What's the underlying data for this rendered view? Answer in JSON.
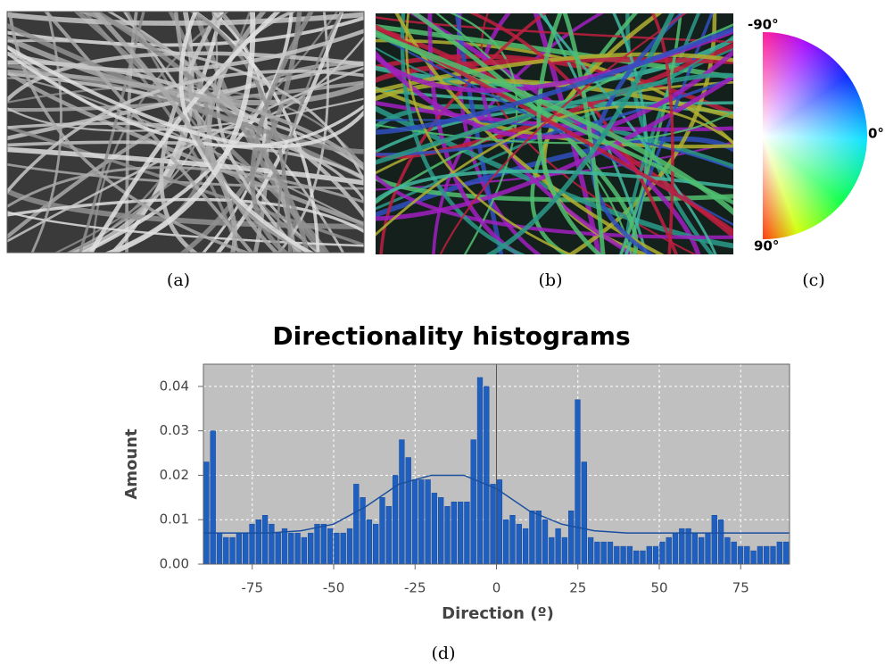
{
  "captions": {
    "a": "(a)",
    "b": "(b)",
    "c": "(c)",
    "d": "(d)"
  },
  "wheel_labels": {
    "top": "-90°",
    "right": "0°",
    "bottom": "90°"
  },
  "chart_data": {
    "type": "histogram",
    "title": "Directionality histograms",
    "x_label": "Direction (º)",
    "y_label": "Amount",
    "bins": [
      -90,
      -88,
      -86,
      -84,
      -82,
      -80,
      -78,
      -76,
      -74,
      -72,
      -70,
      -68,
      -66,
      -64,
      -62,
      -60,
      -58,
      -56,
      -54,
      -52,
      -50,
      -48,
      -46,
      -44,
      -42,
      -40,
      -38,
      -36,
      -34,
      -32,
      -30,
      -28,
      -26,
      -24,
      -22,
      -20,
      -18,
      -16,
      -14,
      -12,
      -10,
      -8,
      -6,
      -4,
      -2,
      0,
      2,
      4,
      6,
      8,
      10,
      12,
      14,
      16,
      18,
      20,
      22,
      24,
      26,
      28,
      30,
      32,
      34,
      36,
      38,
      40,
      42,
      44,
      46,
      48,
      50,
      52,
      54,
      56,
      58,
      60,
      62,
      64,
      66,
      68,
      70,
      72,
      74,
      76,
      78,
      80,
      82,
      84,
      86,
      88,
      90
    ],
    "values": [
      0.023,
      0.03,
      0.007,
      0.006,
      0.006,
      0.007,
      0.007,
      0.009,
      0.01,
      0.011,
      0.009,
      0.007,
      0.008,
      0.007,
      0.007,
      0.006,
      0.007,
      0.009,
      0.009,
      0.008,
      0.007,
      0.007,
      0.008,
      0.018,
      0.015,
      0.01,
      0.009,
      0.015,
      0.013,
      0.02,
      0.028,
      0.024,
      0.019,
      0.019,
      0.019,
      0.016,
      0.015,
      0.013,
      0.014,
      0.014,
      0.014,
      0.028,
      0.042,
      0.04,
      0.018,
      0.019,
      0.01,
      0.011,
      0.009,
      0.008,
      0.012,
      0.012,
      0.01,
      0.006,
      0.008,
      0.006,
      0.012,
      0.037,
      0.023,
      0.006,
      0.005,
      0.005,
      0.005,
      0.004,
      0.004,
      0.004,
      0.003,
      0.003,
      0.004,
      0.004,
      0.005,
      0.006,
      0.007,
      0.008,
      0.008,
      0.007,
      0.006,
      0.007,
      0.011,
      0.01,
      0.006,
      0.005,
      0.004,
      0.004,
      0.003,
      0.004,
      0.004,
      0.004,
      0.005,
      0.005
    ],
    "color": "#1f5fc0",
    "fit_line": {
      "x": [
        -90,
        -80,
        -70,
        -60,
        -50,
        -40,
        -30,
        -20,
        -10,
        0,
        10,
        20,
        30,
        40,
        50,
        60,
        70,
        80,
        90
      ],
      "values": [
        0.007,
        0.007,
        0.007,
        0.0075,
        0.009,
        0.013,
        0.018,
        0.02,
        0.02,
        0.017,
        0.012,
        0.009,
        0.0075,
        0.007,
        0.007,
        0.007,
        0.007,
        0.007,
        0.007
      ],
      "color": "#1a4fa0"
    },
    "xlim": [
      -90,
      90
    ],
    "xticks": [
      -75,
      -50,
      -25,
      0,
      25,
      50,
      75
    ],
    "ylim": [
      0,
      0.045
    ],
    "yticks": [
      {
        "value": 0,
        "label": "0.00"
      },
      {
        "value": 0.01,
        "label": "0.01"
      },
      {
        "value": 0.02,
        "label": "0.02"
      },
      {
        "value": 0.03,
        "label": "0.03"
      },
      {
        "value": 0.04,
        "label": "0.04"
      }
    ],
    "grid": true
  }
}
